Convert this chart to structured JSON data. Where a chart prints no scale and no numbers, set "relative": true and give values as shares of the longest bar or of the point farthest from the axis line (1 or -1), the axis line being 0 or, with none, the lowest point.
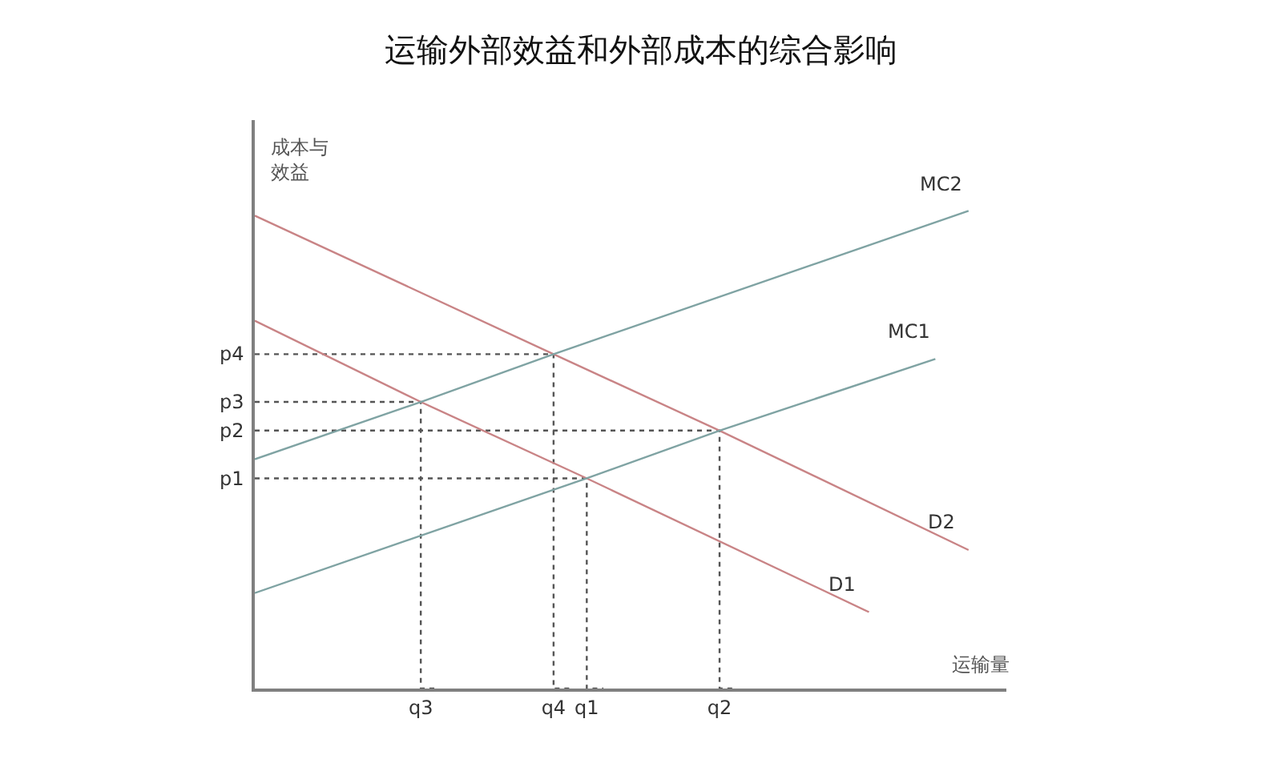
{
  "chart_data": {
    "type": "line",
    "title": "运输外部效益和外部成本的综合影响",
    "xlabel": "运输量",
    "ylabel": "成本与效益",
    "relative": true,
    "categories": [
      null,
      null,
      null,
      null,
      null,
      null,
      null,
      null,
      null,
      null,
      "q3",
      null,
      null,
      null,
      null,
      null,
      null,
      null,
      "q4",
      null,
      "q1",
      null,
      null,
      null,
      null,
      null,
      null,
      null,
      "q2",
      null,
      null,
      null,
      null,
      null,
      null,
      null,
      null,
      null,
      null,
      null,
      null,
      null,
      null,
      null
    ],
    "series": [
      {
        "type": "step",
        "name": "p4",
        "color": "#555555",
        "line_style": "dotted",
        "values": [
          0.7,
          null,
          null,
          null,
          null,
          null,
          null,
          null,
          null,
          null,
          null,
          null,
          null,
          null,
          null,
          null,
          null,
          null,
          0.7,
          0,
          null,
          null,
          null,
          null,
          null,
          null,
          null,
          null,
          null,
          null,
          null,
          null,
          null,
          null,
          null,
          null,
          null,
          null,
          null,
          null,
          null,
          null,
          null,
          null
        ]
      },
      {
        "type": "step",
        "name": "p3",
        "color": "#555555",
        "line_style": "dotted",
        "values": [
          0.6,
          null,
          null,
          null,
          null,
          null,
          null,
          null,
          null,
          null,
          0.6,
          0,
          null,
          null,
          null,
          null,
          null,
          null,
          null,
          null,
          null,
          null,
          null,
          null,
          null,
          null,
          null,
          null,
          null,
          null,
          null,
          null,
          null,
          null,
          null,
          null,
          null,
          null,
          null,
          null,
          null,
          null,
          null,
          null
        ]
      },
      {
        "type": "step",
        "name": "p2",
        "color": "#555555",
        "line_style": "dotted",
        "values": [
          0.54,
          null,
          null,
          null,
          null,
          null,
          null,
          null,
          null,
          null,
          null,
          null,
          null,
          null,
          null,
          null,
          null,
          null,
          null,
          null,
          null,
          null,
          null,
          null,
          null,
          null,
          null,
          null,
          0.54,
          0,
          null,
          null,
          null,
          null,
          null,
          null,
          null,
          null,
          null,
          null,
          null,
          null,
          null,
          null
        ]
      },
      {
        "type": "step",
        "name": "p1",
        "color": "#555555",
        "line_style": "dotted",
        "values": [
          0.44,
          null,
          null,
          null,
          null,
          null,
          null,
          null,
          null,
          null,
          null,
          null,
          null,
          null,
          null,
          null,
          null,
          null,
          null,
          null,
          0.44,
          0,
          null,
          null,
          null,
          null,
          null,
          null,
          null,
          null,
          null,
          null,
          null,
          null,
          null,
          null,
          null,
          null,
          null,
          null,
          null,
          null,
          null,
          null
        ]
      },
      {
        "name": "D2",
        "color": "#c98486",
        "values": [
          0.99,
          null,
          null,
          null,
          null,
          null,
          null,
          null,
          null,
          null,
          null,
          null,
          null,
          null,
          null,
          null,
          null,
          null,
          0.7,
          null,
          null,
          null,
          null,
          null,
          null,
          null,
          null,
          null,
          0.54,
          null,
          null,
          null,
          null,
          null,
          null,
          null,
          null,
          null,
          null,
          null,
          null,
          null,
          null,
          0.29
        ]
      },
      {
        "name": "D1",
        "color": "#c98486",
        "values": [
          0.77,
          null,
          null,
          null,
          null,
          null,
          null,
          null,
          null,
          null,
          0.6,
          null,
          null,
          null,
          null,
          null,
          null,
          null,
          null,
          null,
          0.44,
          null,
          null,
          null,
          null,
          null,
          null,
          null,
          null,
          null,
          null,
          null,
          null,
          null,
          null,
          null,
          null,
          0.16,
          null,
          null,
          null,
          null,
          null,
          null
        ]
      },
      {
        "name": "MC2",
        "color": "#7fa3a3",
        "values": [
          0.48,
          null,
          null,
          null,
          null,
          null,
          null,
          null,
          null,
          null,
          0.6,
          null,
          null,
          null,
          null,
          null,
          null,
          null,
          0.7,
          null,
          null,
          null,
          null,
          null,
          null,
          null,
          null,
          null,
          null,
          null,
          null,
          null,
          null,
          null,
          null,
          null,
          null,
          null,
          null,
          null,
          null,
          null,
          null,
          1.0
        ]
      },
      {
        "name": "MC1",
        "color": "#7fa3a3",
        "values": [
          0.2,
          null,
          null,
          null,
          null,
          null,
          null,
          null,
          null,
          null,
          null,
          null,
          null,
          null,
          null,
          null,
          null,
          null,
          null,
          null,
          0.44,
          null,
          null,
          null,
          null,
          null,
          null,
          null,
          0.54,
          null,
          null,
          null,
          null,
          null,
          null,
          null,
          null,
          null,
          null,
          null,
          null,
          0.69,
          null,
          null
        ]
      }
    ]
  }
}
